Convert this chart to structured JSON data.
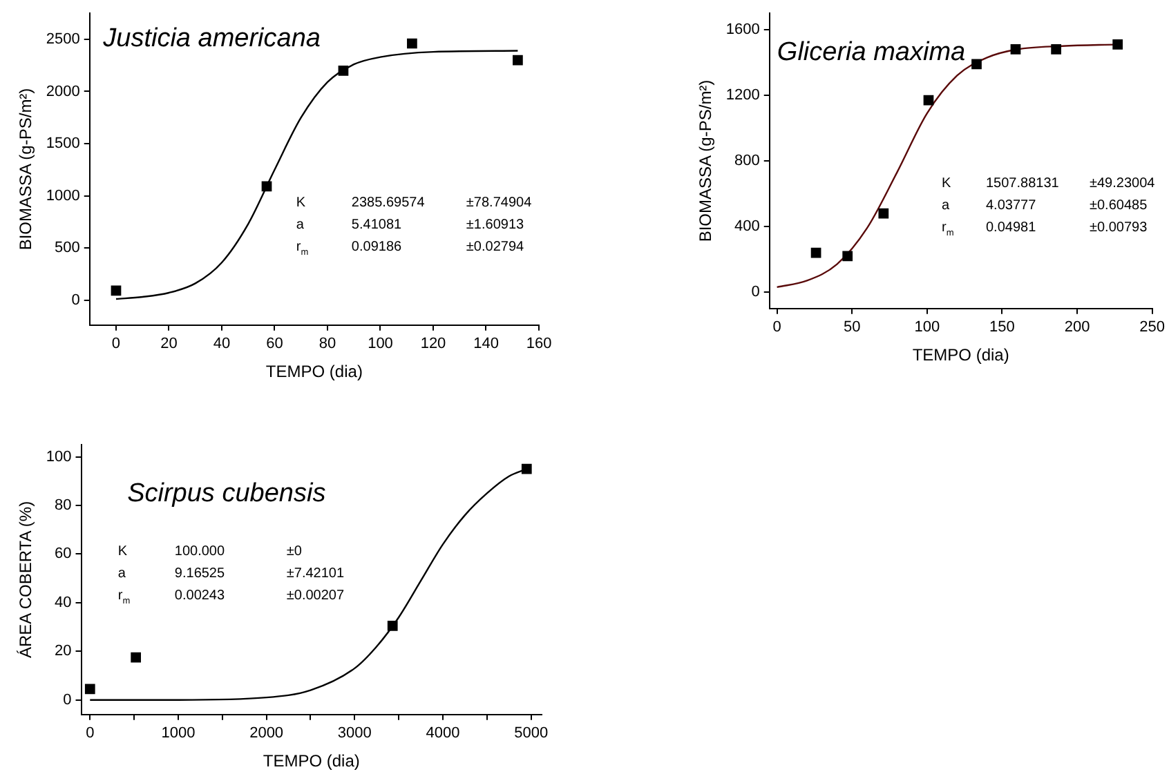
{
  "chart_data": [
    {
      "type": "scatter",
      "title": "Justicia americana",
      "xlabel": "TEMPO (dia)",
      "ylabel": "BIOMASSA (g-PS/m²)",
      "xlim": [
        -10,
        160
      ],
      "xticks": [
        0,
        20,
        40,
        60,
        80,
        100,
        120,
        140,
        160
      ],
      "ylim": [
        -240,
        2750
      ],
      "yticks": [
        0,
        500,
        1000,
        1500,
        2000,
        2500
      ],
      "grid": false,
      "legend": false,
      "line_style": "solid",
      "annotations": [
        "K\t2385.69574\t±78.74904",
        "a\t5.41081\t±1.60913",
        "r$_{m}$\t0.09186\t±0.02794"
      ],
      "series": [
        {
          "marker": "square",
          "color": "#000000",
          "x": [
            0,
            57,
            86,
            112,
            152
          ],
          "values": [
            90,
            1090,
            2200,
            2460,
            2300
          ]
        },
        {
          "type": "line",
          "marker": "none",
          "color": "#000000",
          "x": [
            0,
            10,
            20,
            30,
            40,
            50,
            60,
            70,
            80,
            90,
            100,
            120,
            152
          ],
          "values": [
            10,
            30,
            70,
            160,
            360,
            730,
            1250,
            1750,
            2090,
            2260,
            2330,
            2380,
            2390
          ]
        }
      ]
    },
    {
      "type": "scatter",
      "title": "Gliceria maxima",
      "xlabel": "TEMPO (dia)",
      "ylabel": "BIOMASSA (g-PS/m²)",
      "xlim": [
        -5,
        250
      ],
      "xticks": [
        0,
        50,
        100,
        150,
        200,
        250
      ],
      "ylim": [
        -100,
        1700
      ],
      "yticks": [
        0,
        400,
        800,
        1200,
        1600
      ],
      "grid": false,
      "legend": false,
      "line_style": "solid",
      "annotations": [
        "K\t1507.88131\t±49.23004",
        "a\t4.03777\t±0.60485",
        "r$_{m}$\t0.04981\t±0.00793"
      ],
      "series": [
        {
          "marker": "square",
          "color": "#000000",
          "x": [
            26,
            47,
            71,
            101,
            133,
            159,
            186,
            227
          ],
          "values": [
            240,
            220,
            480,
            1170,
            1390,
            1480,
            1480,
            1510
          ]
        },
        {
          "type": "line",
          "marker": "none",
          "color": "#5a0a0a",
          "x": [
            0,
            20,
            40,
            60,
            80,
            100,
            120,
            140,
            160,
            190,
            227
          ],
          "values": [
            30,
            70,
            170,
            390,
            730,
            1090,
            1320,
            1430,
            1480,
            1500,
            1510
          ]
        }
      ]
    },
    {
      "type": "scatter",
      "title": "Scirpus cubensis",
      "xlabel": "TEMPO (dia)",
      "ylabel": "ÁREA COBERTA (%)",
      "xlim": [
        -100,
        5120
      ],
      "xticks": [
        0,
        {
          "value": 500,
          "label": null
        },
        1000,
        {
          "value": 1500,
          "label": null
        },
        2000,
        {
          "value": 2500,
          "label": null
        },
        3000,
        {
          "value": 3500,
          "label": null
        },
        4000,
        {
          "value": 4500,
          "label": null
        },
        5000
      ],
      "ylim": [
        -6,
        105
      ],
      "yticks": [
        0,
        20,
        40,
        60,
        80,
        100
      ],
      "grid": false,
      "legend": false,
      "line_style": "solid",
      "annotations": [
        "K\t100.000\t±0",
        "a\t9.16525\t±7.42101",
        "r$_{m}$\t0.00243\t±0.00207"
      ],
      "series": [
        {
          "marker": "square",
          "color": "#000000",
          "x": [
            0,
            520,
            3430,
            4950
          ],
          "values": [
            4.5,
            17.5,
            30.5,
            95
          ]
        },
        {
          "type": "line",
          "marker": "none",
          "color": "#000000",
          "x": [
            0,
            1000,
            2000,
            2500,
            3000,
            3250,
            3500,
            3750,
            4000,
            4250,
            4500,
            4750,
            4950
          ],
          "values": [
            0,
            0,
            1,
            4,
            13,
            22,
            34,
            49,
            64,
            76,
            85,
            92,
            95
          ]
        }
      ]
    }
  ]
}
